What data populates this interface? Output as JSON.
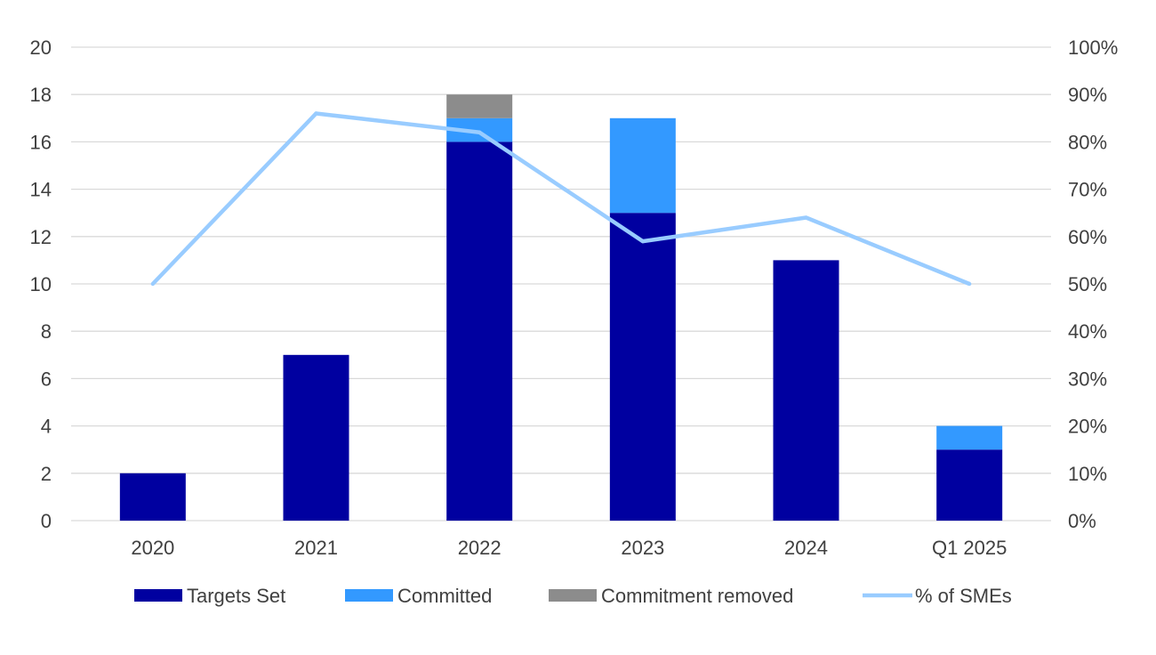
{
  "chart_data": {
    "type": "bar",
    "stacked": true,
    "categories": [
      "2020",
      "2021",
      "2022",
      "2023",
      "2024",
      "Q1 2025"
    ],
    "series": [
      {
        "name": "Targets Set",
        "values": [
          2,
          7,
          16,
          13,
          11,
          3
        ],
        "color": "#0000A0",
        "kind": "bar"
      },
      {
        "name": "Committed",
        "values": [
          0,
          0,
          1,
          4,
          0,
          1
        ],
        "color": "#3399FF",
        "kind": "bar"
      },
      {
        "name": "Commitment removed",
        "values": [
          0,
          0,
          1,
          0,
          0,
          0
        ],
        "color": "#8C8C8C",
        "kind": "bar"
      },
      {
        "name": "% of SMEs",
        "values": [
          50,
          86,
          82,
          59,
          64,
          50
        ],
        "color": "#99CCFF",
        "kind": "line",
        "axis": "right"
      }
    ],
    "y_left": {
      "min": 0,
      "max": 20,
      "step": 2,
      "ticks": [
        "0",
        "2",
        "4",
        "6",
        "8",
        "10",
        "12",
        "14",
        "16",
        "18",
        "20"
      ]
    },
    "y_right": {
      "min": 0,
      "max": 100,
      "step": 10,
      "ticks": [
        "0%",
        "10%",
        "20%",
        "30%",
        "40%",
        "50%",
        "60%",
        "70%",
        "80%",
        "90%",
        "100%"
      ]
    },
    "grid": true,
    "legend_position": "bottom",
    "gridline_color": "#D9D9D9",
    "text_color": "#404040"
  }
}
